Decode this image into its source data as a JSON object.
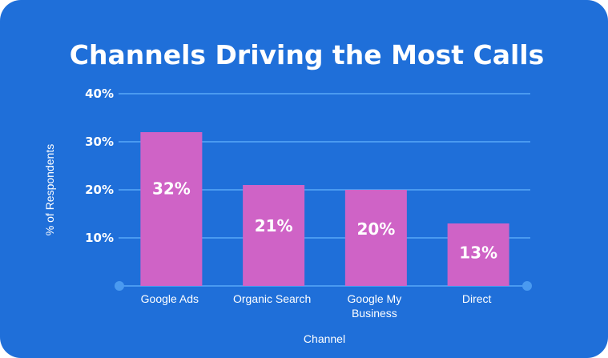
{
  "chart_data": {
    "type": "bar",
    "title": "Channels Driving the Most Calls",
    "xlabel": "Channel",
    "ylabel": "% of Respondents",
    "categories": [
      [
        "Google Ads"
      ],
      [
        "Organic Search"
      ],
      [
        "Google My",
        "Business"
      ],
      [
        "Direct"
      ]
    ],
    "values": [
      32,
      21,
      20,
      13
    ],
    "data_labels": [
      "32%",
      "21%",
      "20%",
      "13%"
    ],
    "ylim": [
      0,
      40
    ],
    "yticks": [
      10,
      20,
      30,
      40
    ],
    "ytick_labels": [
      "10%",
      "20%",
      "30%",
      "40%"
    ],
    "grid": true,
    "legend": "none"
  },
  "colors": {
    "background": "#1f6fd9",
    "bar": "#cf63c6",
    "grid": "#4a9af0",
    "text": "#ffffff"
  }
}
